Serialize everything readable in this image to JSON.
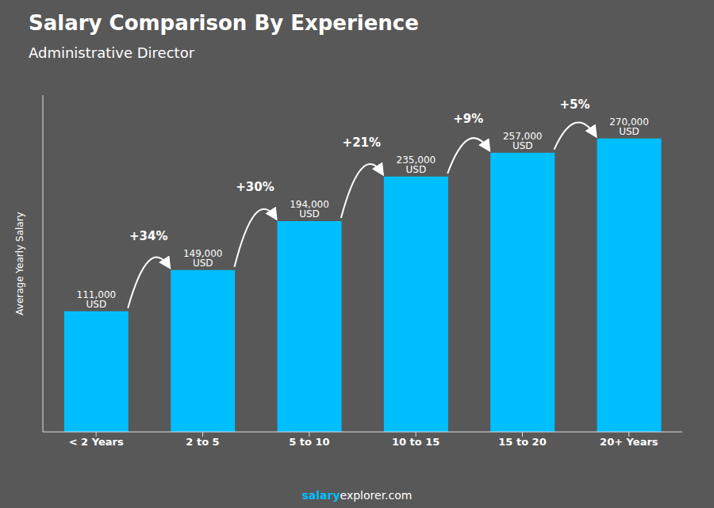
{
  "chart_data": {
    "type": "bar",
    "title": "Salary Comparison By Experience",
    "subtitle": "Administrative Director",
    "ylabel": "Average Yearly Salary",
    "footer": [
      "salary",
      "explorer.com"
    ],
    "categories": [
      "< 2 Years",
      "2 to 5",
      "5 to 10",
      "10 to 15",
      "15 to 20",
      "20+ Years"
    ],
    "values": [
      111000,
      149000,
      194000,
      235000,
      257000,
      270000
    ],
    "value_labels": [
      "111,000 USD",
      "149,000 USD",
      "194,000 USD",
      "235,000 USD",
      "257,000 USD",
      "270,000 USD"
    ],
    "annotations": [
      "+34%",
      "+30%",
      "+21%",
      "+9%",
      "+5%"
    ],
    "color": "#00BFFF",
    "ylim": [
      0,
      310000
    ],
    "grid": false,
    "data_labels": true,
    "tick_labels": "x"
  }
}
